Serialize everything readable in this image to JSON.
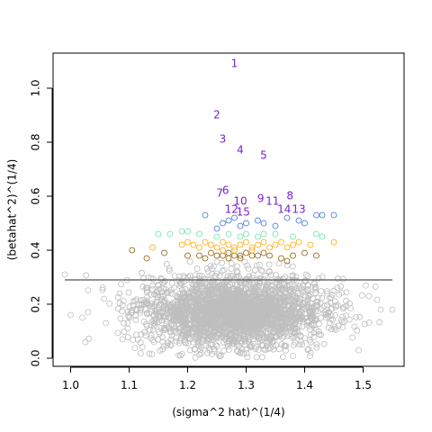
{
  "chart_data": {
    "type": "scatter",
    "xlabel": "(sigma^2 hat)^(1/4)",
    "ylabel": "(betahat^2)^(1/4)",
    "xlim": [
      0.97,
      1.57
    ],
    "ylim": [
      -0.03,
      1.13
    ],
    "x_ticks": [
      1.0,
      1.1,
      1.2,
      1.3,
      1.4,
      1.5
    ],
    "x_tick_labels": [
      "1.0",
      "1.1",
      "1.2",
      "1.3",
      "1.4",
      "1.5"
    ],
    "y_ticks": [
      0.0,
      0.2,
      0.4,
      0.6,
      0.8,
      1.0
    ],
    "y_tick_labels": [
      "0.0",
      "0.2",
      "0.4",
      "0.6",
      "0.8",
      "1.0"
    ],
    "grid": false,
    "legend": "none",
    "horizontal_line": {
      "y": 0.29,
      "x_range": [
        0.99,
        1.55
      ],
      "color": "#555555"
    },
    "background_cloud": {
      "color": "#bebebe",
      "center": [
        1.28,
        0.17
      ],
      "x_spread": 0.075,
      "y_range": [
        0.0,
        0.36
      ],
      "outliers": [
        [
          0.99,
          0.31
        ],
        [
          1.0,
          0.16
        ],
        [
          1.02,
          0.15
        ],
        [
          1.03,
          0.17
        ],
        [
          1.51,
          0.23
        ],
        [
          1.55,
          0.18
        ],
        [
          1.53,
          0.18
        ],
        [
          1.06,
          0.13
        ]
      ]
    },
    "series": [
      {
        "color": "#8b5a00",
        "points": [
          [
            1.105,
            0.4
          ],
          [
            1.13,
            0.37
          ],
          [
            1.16,
            0.39
          ],
          [
            1.2,
            0.38
          ],
          [
            1.22,
            0.38
          ],
          [
            1.24,
            0.39
          ],
          [
            1.25,
            0.38
          ],
          [
            1.26,
            0.38
          ],
          [
            1.27,
            0.39
          ],
          [
            1.28,
            0.38
          ],
          [
            1.29,
            0.38
          ],
          [
            1.3,
            0.39
          ],
          [
            1.31,
            0.38
          ],
          [
            1.32,
            0.38
          ],
          [
            1.33,
            0.39
          ],
          [
            1.34,
            0.38
          ],
          [
            1.36,
            0.37
          ],
          [
            1.38,
            0.38
          ],
          [
            1.4,
            0.39
          ],
          [
            1.42,
            0.38
          ],
          [
            1.37,
            0.36
          ],
          [
            1.27,
            0.37
          ],
          [
            1.29,
            0.37
          ],
          [
            1.23,
            0.37
          ]
        ]
      },
      {
        "color": "#ffa500",
        "points": [
          [
            1.14,
            0.41
          ],
          [
            1.19,
            0.42
          ],
          [
            1.2,
            0.43
          ],
          [
            1.21,
            0.42
          ],
          [
            1.22,
            0.41
          ],
          [
            1.23,
            0.43
          ],
          [
            1.24,
            0.42
          ],
          [
            1.25,
            0.41
          ],
          [
            1.26,
            0.43
          ],
          [
            1.27,
            0.42
          ],
          [
            1.28,
            0.41
          ],
          [
            1.29,
            0.42
          ],
          [
            1.3,
            0.43
          ],
          [
            1.31,
            0.41
          ],
          [
            1.32,
            0.42
          ],
          [
            1.33,
            0.43
          ],
          [
            1.34,
            0.41
          ],
          [
            1.35,
            0.42
          ],
          [
            1.36,
            0.43
          ],
          [
            1.37,
            0.41
          ],
          [
            1.38,
            0.42
          ],
          [
            1.39,
            0.43
          ],
          [
            1.41,
            0.42
          ],
          [
            1.45,
            0.43
          ],
          [
            1.26,
            0.4
          ],
          [
            1.28,
            0.4
          ],
          [
            1.31,
            0.4
          ]
        ]
      },
      {
        "color": "#66e3a8",
        "points": [
          [
            1.15,
            0.46
          ],
          [
            1.17,
            0.46
          ],
          [
            1.19,
            0.47
          ],
          [
            1.2,
            0.47
          ],
          [
            1.22,
            0.46
          ],
          [
            1.25,
            0.45
          ],
          [
            1.27,
            0.46
          ],
          [
            1.3,
            0.46
          ],
          [
            1.32,
            0.45
          ],
          [
            1.35,
            0.46
          ],
          [
            1.38,
            0.45
          ],
          [
            1.42,
            0.46
          ],
          [
            1.43,
            0.45
          ],
          [
            1.29,
            0.45
          ],
          [
            1.33,
            0.46
          ]
        ]
      },
      {
        "color": "#3b6fe0",
        "points": [
          [
            1.23,
            0.53
          ],
          [
            1.26,
            0.5
          ],
          [
            1.27,
            0.51
          ],
          [
            1.28,
            0.52
          ],
          [
            1.29,
            0.49
          ],
          [
            1.3,
            0.5
          ],
          [
            1.32,
            0.51
          ],
          [
            1.33,
            0.5
          ],
          [
            1.37,
            0.52
          ],
          [
            1.39,
            0.51
          ],
          [
            1.4,
            0.5
          ],
          [
            1.42,
            0.53
          ],
          [
            1.43,
            0.53
          ],
          [
            1.45,
            0.53
          ],
          [
            1.25,
            0.48
          ],
          [
            1.35,
            0.49
          ]
        ]
      }
    ],
    "annotations": [
      {
        "text": "1",
        "x": 1.28,
        "y": 1.09
      },
      {
        "text": "2",
        "x": 1.25,
        "y": 0.9
      },
      {
        "text": "3",
        "x": 1.26,
        "y": 0.81
      },
      {
        "text": "4",
        "x": 1.29,
        "y": 0.77
      },
      {
        "text": "5",
        "x": 1.33,
        "y": 0.75
      },
      {
        "text": "6",
        "x": 1.265,
        "y": 0.62
      },
      {
        "text": "7",
        "x": 1.255,
        "y": 0.61
      },
      {
        "text": "8",
        "x": 1.375,
        "y": 0.6
      },
      {
        "text": "9",
        "x": 1.325,
        "y": 0.59
      },
      {
        "text": "10",
        "x": 1.29,
        "y": 0.58
      },
      {
        "text": "11",
        "x": 1.345,
        "y": 0.58
      },
      {
        "text": "12",
        "x": 1.275,
        "y": 0.55
      },
      {
        "text": "13",
        "x": 1.39,
        "y": 0.55
      },
      {
        "text": "14",
        "x": 1.365,
        "y": 0.55
      },
      {
        "text": "15",
        "x": 1.295,
        "y": 0.54
      }
    ],
    "annotation_color": "#7a1fd6"
  }
}
